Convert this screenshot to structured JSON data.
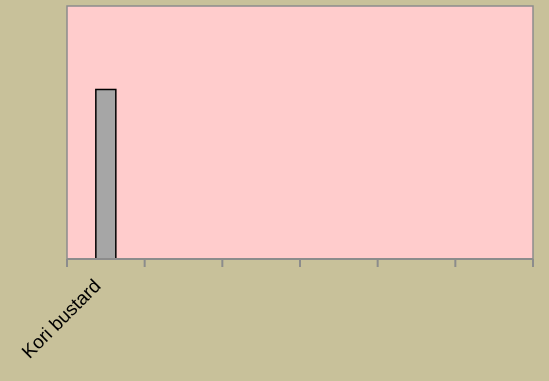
{
  "chart_data": {
    "type": "bar",
    "categories": [
      "Kori bustard"
    ],
    "values": [
      67
    ],
    "ylim": [
      0,
      100
    ],
    "x_slots": 6,
    "grid": false,
    "legend": "none",
    "title": "",
    "xlabel": "",
    "ylabel": ""
  },
  "colors": {
    "page_background": "#c8c19a",
    "plot_background": "#ffcccc",
    "bar_fill": "#a6a6a6",
    "bar_stroke": "#000000",
    "axis": "#8c8c8c"
  }
}
